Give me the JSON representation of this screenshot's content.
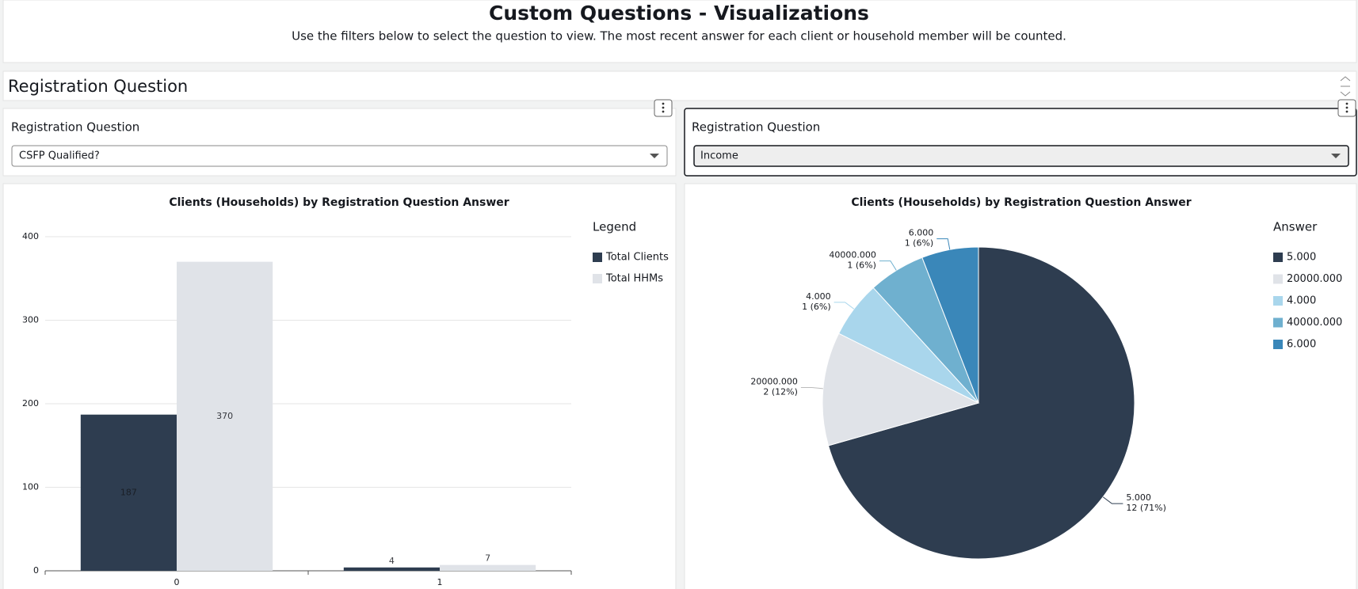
{
  "header": {
    "title": "Custom Questions - Visualizations",
    "subtitle": "Use the filters below to select the question to view. The most recent answer for each client or household member will be counted."
  },
  "section": {
    "title": "Registration Question"
  },
  "filters": [
    {
      "label": "Registration Question",
      "value": "CSFP Qualified?"
    },
    {
      "label": "Registration Question",
      "value": "Income"
    }
  ],
  "chart_data": [
    {
      "type": "bar",
      "title": "Clients (Households) by Registration Question Answer",
      "legend_title": "Legend",
      "categories": [
        "0",
        "1"
      ],
      "series": [
        {
          "name": "Total Clients",
          "color": "#2e3d50",
          "values": [
            187,
            4
          ]
        },
        {
          "name": "Total HHMs",
          "color": "#e0e3e8",
          "values": [
            370,
            7
          ]
        }
      ],
      "ylim": [
        0,
        400
      ],
      "yticks": [
        0,
        100,
        200,
        300,
        400
      ],
      "grid": true,
      "legend": "right"
    },
    {
      "type": "pie",
      "title": "Clients (Households) by Registration Question Answer",
      "legend_title": "Answer",
      "categories": [
        "5.000",
        "20000.000",
        "4.000",
        "40000.000",
        "6.000"
      ],
      "values": [
        12,
        2,
        1,
        1,
        1
      ],
      "value_labels": [
        "12 (71%)",
        "2 (12%)",
        "1 (6%)",
        "1 (6%)",
        "1 (6%)"
      ],
      "colors": [
        "#2e3d50",
        "#e0e3e8",
        "#a9d6ec",
        "#6fb0cf",
        "#3a87b9"
      ],
      "legend": "right"
    }
  ]
}
